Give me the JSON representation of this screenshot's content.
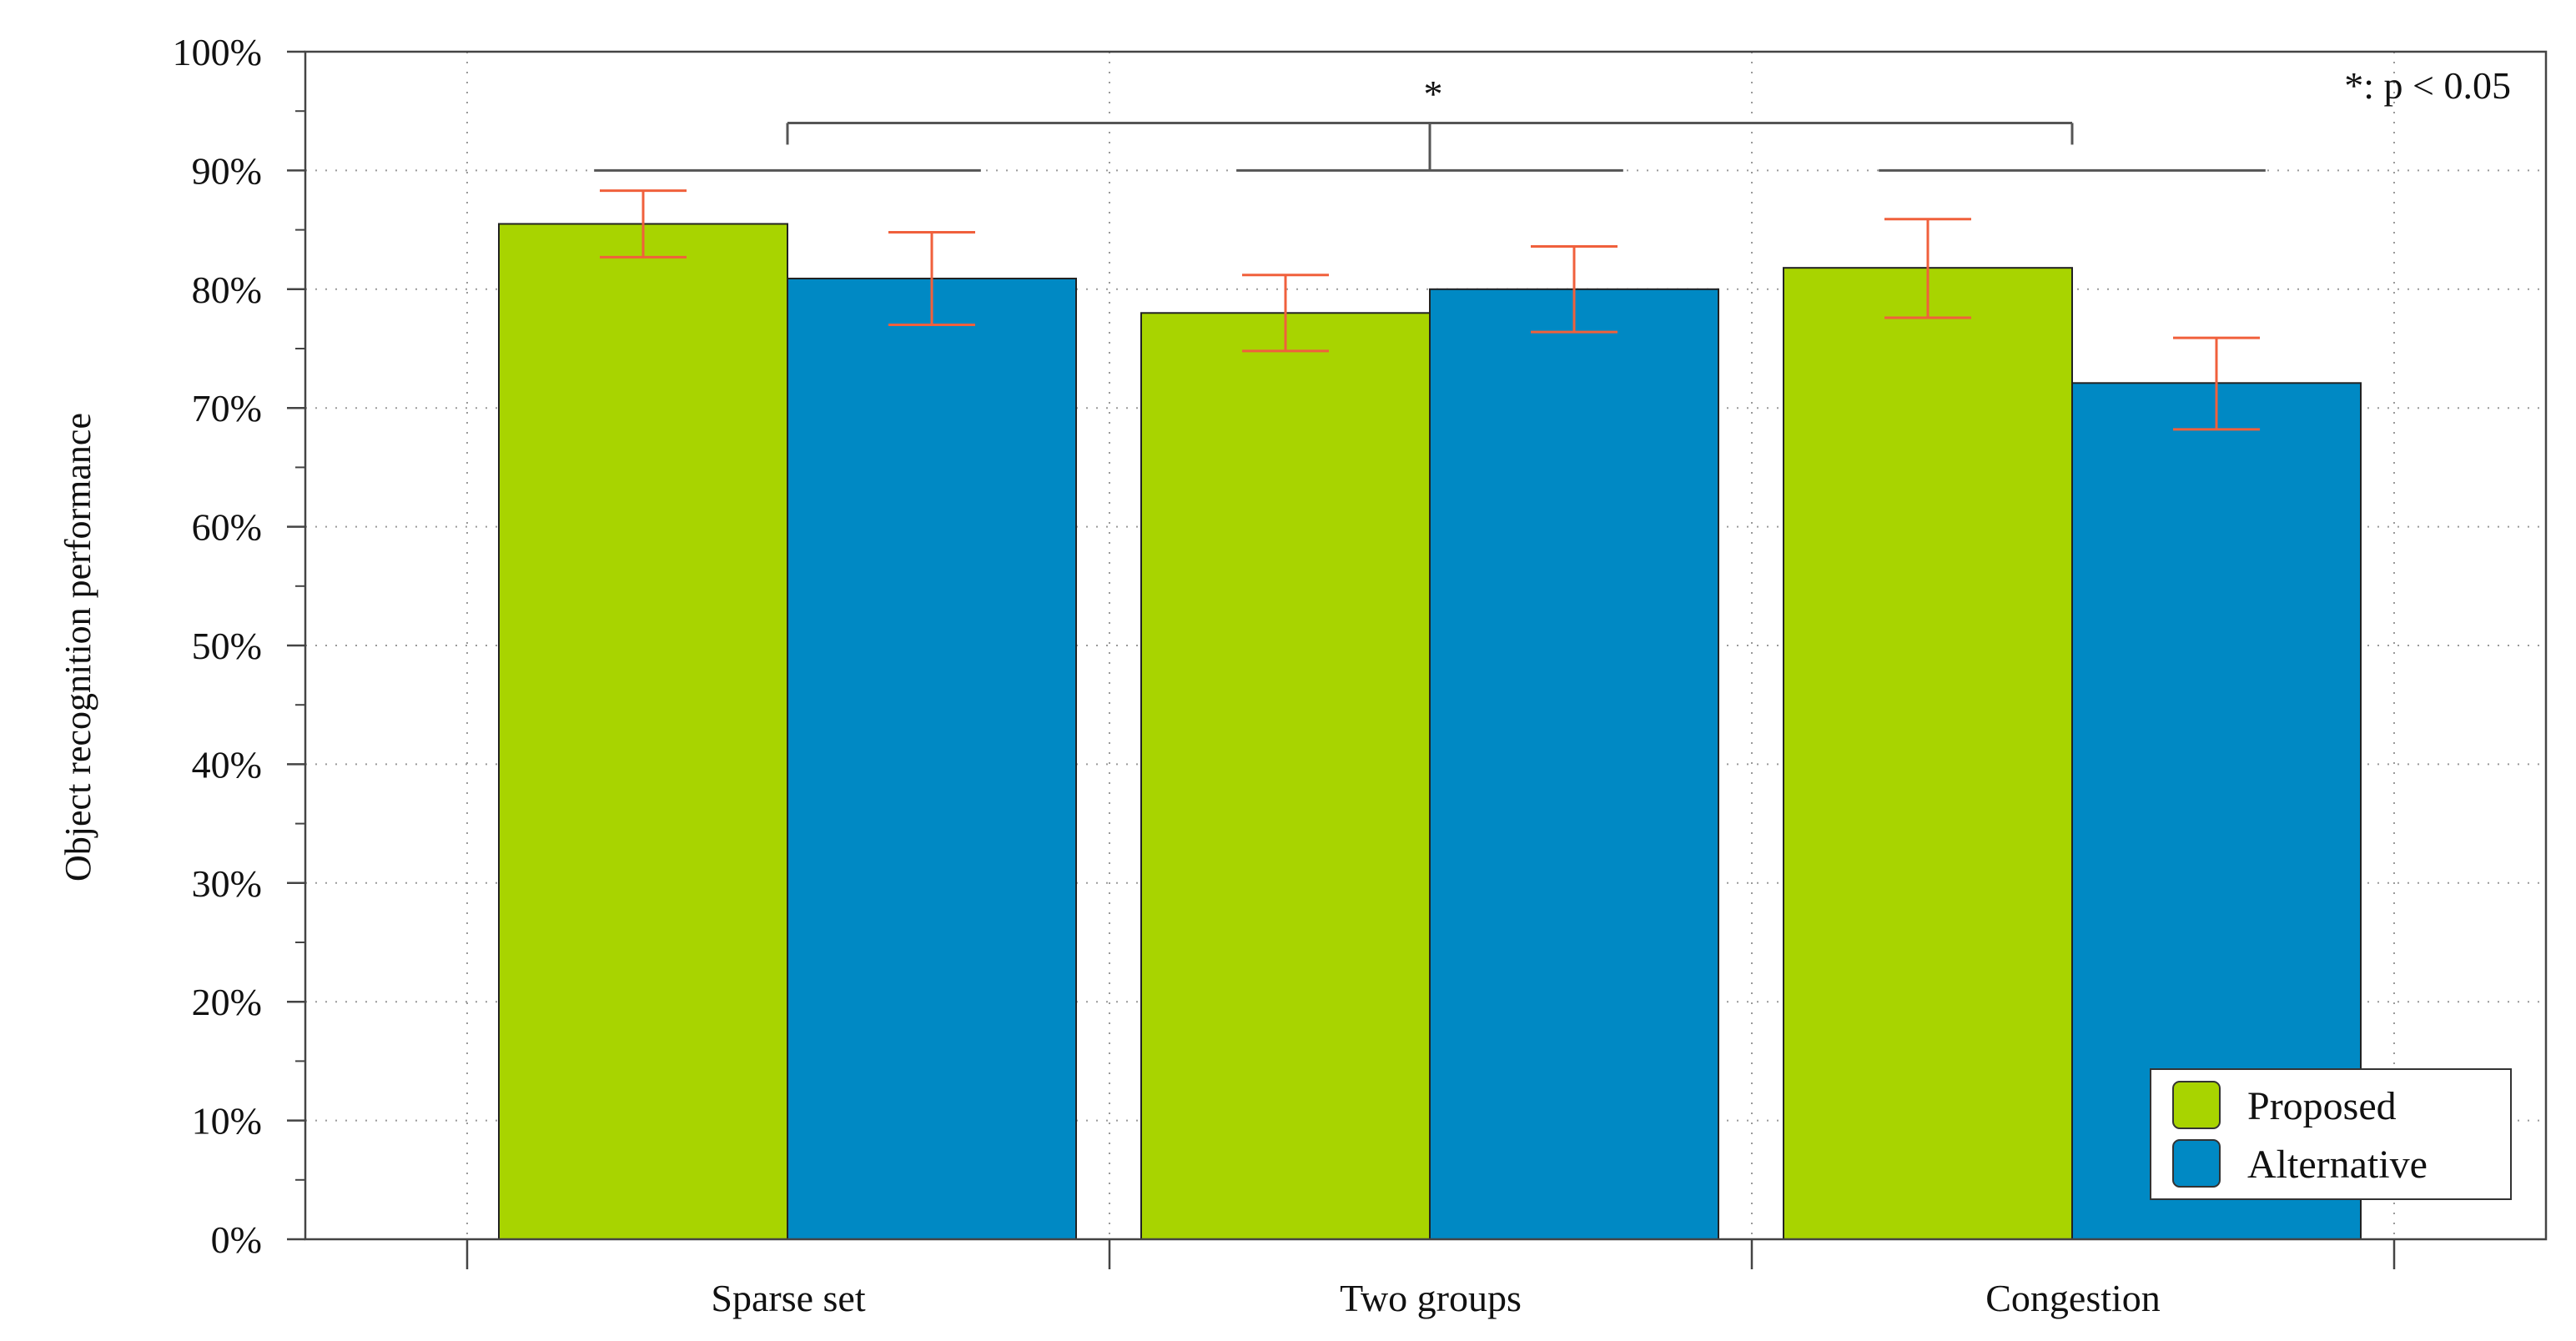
{
  "chart_data": {
    "type": "bar",
    "title": "",
    "xlabel": "",
    "ylabel": "Object recognition performance",
    "ylim": [
      0,
      100
    ],
    "y_unit": "%",
    "y_ticks": [
      0,
      10,
      20,
      30,
      40,
      50,
      60,
      70,
      80,
      90,
      100
    ],
    "y_tick_labels": [
      "0%",
      "10%",
      "20%",
      "30%",
      "40%",
      "50%",
      "60%",
      "70%",
      "80%",
      "90%",
      "100%"
    ],
    "grid": true,
    "categories": [
      "Sparse set",
      "Two groups",
      "Congestion"
    ],
    "series": [
      {
        "name": "Proposed",
        "color": "#a8d400",
        "values": [
          85.5,
          78.0,
          81.8
        ],
        "error_low": [
          82.7,
          74.8,
          77.6
        ],
        "error_high": [
          88.3,
          81.2,
          85.9
        ]
      },
      {
        "name": "Alternative",
        "color": "#0089c4",
        "values": [
          80.9,
          80.0,
          72.1
        ],
        "error_low": [
          77.0,
          76.4,
          68.2
        ],
        "error_high": [
          84.8,
          83.6,
          75.9
        ]
      }
    ],
    "error_bar_color": "#f0603c",
    "legend": {
      "position": "bottom-right",
      "entries": [
        "Proposed",
        "Alternative"
      ]
    },
    "annotations": {
      "significance_note": "*: p < 0.05",
      "significance_star": "*",
      "group_lines_level": 90,
      "bracket_level": 94
    }
  }
}
